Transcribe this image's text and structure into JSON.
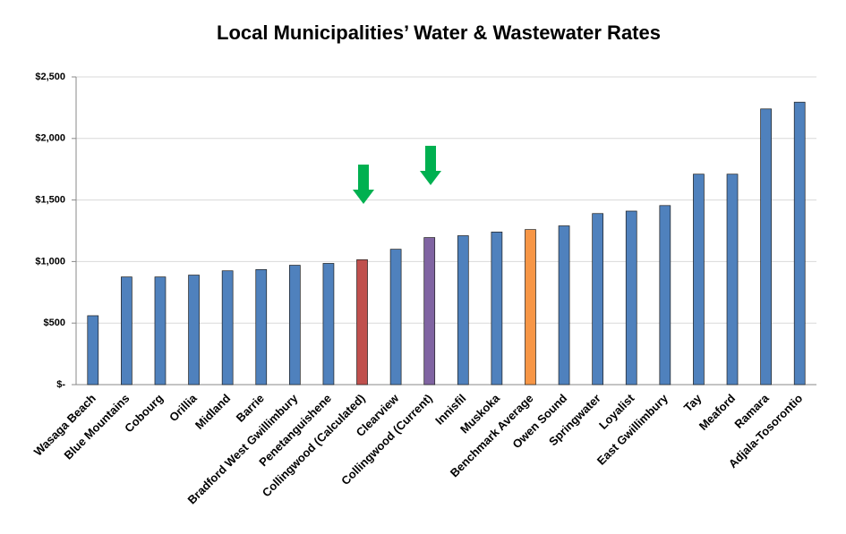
{
  "chart_data": {
    "type": "bar",
    "title": "Local Municipalities’ Water & Wastewater Rates",
    "categories": [
      "Wasaga Beach",
      "Blue Mountains",
      "Cobourg",
      "Orillia",
      "Midland",
      "Barrie",
      "Bradford West Gwillimbury",
      "Penetanguishene",
      "Collingwood (Calculated)",
      "Clearview",
      "Collingwood (Current)",
      "Innisfil",
      "Muskoka",
      "Benchmark Average",
      "Owen Sound",
      "Springwater",
      "Loyalist",
      "East Gwillimbury",
      "Tay",
      "Meaford",
      "Ramara",
      "Adjala-Tosorontio"
    ],
    "values": [
      560,
      875,
      875,
      890,
      925,
      935,
      970,
      985,
      1015,
      1100,
      1195,
      1210,
      1240,
      1260,
      1290,
      1390,
      1410,
      1455,
      1710,
      1710,
      2240,
      2295
    ],
    "colors": [
      "#4f81bd",
      "#4f81bd",
      "#4f81bd",
      "#4f81bd",
      "#4f81bd",
      "#4f81bd",
      "#4f81bd",
      "#4f81bd",
      "#c0504d",
      "#4f81bd",
      "#8064a2",
      "#4f81bd",
      "#4f81bd",
      "#f79646",
      "#4f81bd",
      "#4f81bd",
      "#4f81bd",
      "#4f81bd",
      "#4f81bd",
      "#4f81bd",
      "#4f81bd",
      "#4f81bd"
    ],
    "ylim": [
      0,
      2500
    ],
    "yticks": [
      {
        "value": 0,
        "label": "$-"
      },
      {
        "value": 500,
        "label": "$500"
      },
      {
        "value": 1000,
        "label": "$1,000"
      },
      {
        "value": 1500,
        "label": "$1,500"
      },
      {
        "value": 2000,
        "label": "$2,000"
      },
      {
        "value": 2500,
        "label": "$2,500"
      }
    ],
    "grid": true
  }
}
